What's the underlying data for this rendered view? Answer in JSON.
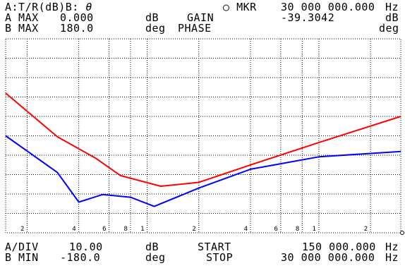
{
  "header": {
    "format": "A:T/R(dB)B:",
    "format_value": "θ",
    "marker_symbol": "○",
    "marker_label": "MKR",
    "marker_freq": "30 000 000.000",
    "marker_freq_unit": "Hz",
    "a_max_label": "A MAX",
    "a_max_value": "0.000",
    "a_max_unit": "dB",
    "gain_label": "GAIN",
    "gain_value": "-39.3042",
    "gain_unit": "dB",
    "b_max_label": "B MAX",
    "b_max_value": "180.0",
    "b_max_unit": "deg",
    "phase_label": "PHASE",
    "phase_unit": "deg"
  },
  "footer": {
    "a_div_label": "A/DIV",
    "a_div_value": "10.00",
    "a_div_unit": "dB",
    "start_label": "START",
    "start_value": "150 000.000",
    "start_unit": "Hz",
    "b_min_label": "B MIN",
    "b_min_value": "-180.0",
    "b_min_unit": "deg",
    "stop_label": "STOP",
    "stop_value": "30 000 000.000",
    "stop_unit": "Hz"
  },
  "chart_data": {
    "type": "line",
    "x_scale": "log",
    "xlim": [
      150000,
      30000000
    ],
    "grid": true,
    "x_tick_labels": [
      {
        "x": 200000,
        "label": "2"
      },
      {
        "x": 400000,
        "label": "4"
      },
      {
        "x": 600000,
        "label": "6"
      },
      {
        "x": 800000,
        "label": "8"
      },
      {
        "x": 1000000,
        "label": "1"
      },
      {
        "x": 2000000,
        "label": "2"
      },
      {
        "x": 4000000,
        "label": "4"
      },
      {
        "x": 6000000,
        "label": "6"
      },
      {
        "x": 8000000,
        "label": "8"
      },
      {
        "x": 10000000,
        "label": "1"
      },
      {
        "x": 20000000,
        "label": "2"
      }
    ],
    "series": [
      {
        "trace": "A",
        "color": "#ff0000",
        "ylim": [
          -100,
          0
        ],
        "x": [
          150000,
          300000,
          500000,
          700000,
          1200000,
          2000000,
          4000000,
          10000000,
          30000000
        ],
        "y": [
          -28,
          -50.5,
          -61.5,
          -70.5,
          -76,
          -74,
          -65,
          -53.5,
          -40
        ]
      },
      {
        "trace": "B",
        "color": "#0000ff",
        "ylim": [
          -180,
          180
        ],
        "x": [
          150000,
          300000,
          400000,
          550000,
          800000,
          1100000,
          2000000,
          4000000,
          10000000,
          30000000
        ],
        "y": [
          0,
          -68,
          -123,
          -109,
          -114,
          -131,
          -97,
          -62,
          -39,
          -29
        ]
      }
    ]
  }
}
